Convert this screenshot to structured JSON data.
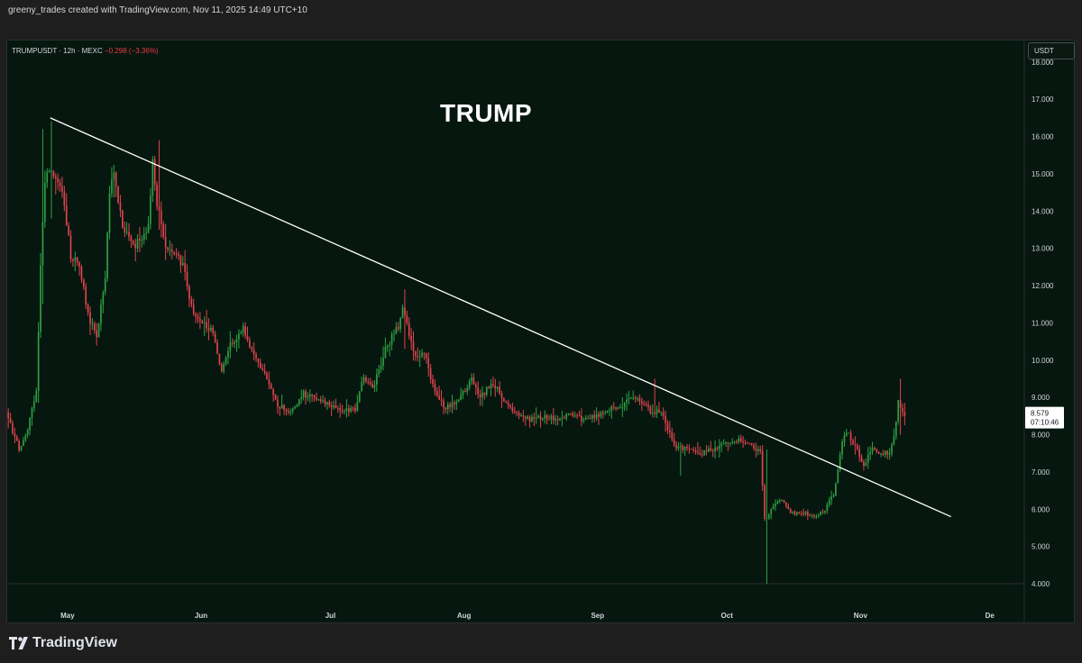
{
  "header": {
    "credit": "greeny_trades created with TradingView.com, Nov 11, 2025 14:49 UTC+10"
  },
  "legend": {
    "symbol": "TRUMPUSDT · 12h · MEXC",
    "change": "−0.298 (−3.36%)"
  },
  "currency": "USDT",
  "footer": {
    "brand": "TradingView"
  },
  "colors": {
    "background": "#06170f",
    "up": "#2ea043",
    "down": "#e0434e",
    "trendline": "#ffffff"
  },
  "chart_data": {
    "type": "candlestick",
    "title": "TRUMP",
    "symbol": "TRUMPUSDT",
    "interval": "12h",
    "exchange": "MEXC",
    "y_ticks": [
      "18.000",
      "17.000",
      "16.000",
      "15.000",
      "14.000",
      "13.000",
      "12.000",
      "11.000",
      "10.000",
      "9.000",
      "8.000",
      "7.000",
      "6.000",
      "5.000",
      "4.000"
    ],
    "ylim": [
      4.0,
      18.6
    ],
    "x_ticks": [
      "May",
      "Jun",
      "Jul",
      "Aug",
      "Sep",
      "Oct",
      "Nov",
      "De"
    ],
    "x_range": [
      "2025-04-17",
      "2025-12-09"
    ],
    "last_price": "8.579",
    "countdown": "07:10:46",
    "trendline": {
      "start": {
        "date": "2025-04-27",
        "price": 16.5
      },
      "end": {
        "date": "2025-11-22",
        "price": 5.8
      }
    },
    "path": [
      [
        "2025-04-17",
        8.6
      ],
      [
        "2025-04-20",
        7.6
      ],
      [
        "2025-04-22",
        8.2
      ],
      [
        "2025-04-24",
        9.1
      ],
      [
        "2025-04-25",
        12.5
      ],
      [
        "2025-04-26",
        14.8
      ],
      [
        "2025-04-27",
        15.2
      ],
      [
        "2025-04-30",
        14.6
      ],
      [
        "2025-05-02",
        12.8
      ],
      [
        "2025-05-04",
        12.6
      ],
      [
        "2025-05-06",
        11.2
      ],
      [
        "2025-05-08",
        10.6
      ],
      [
        "2025-05-10",
        12.2
      ],
      [
        "2025-05-11",
        14.5
      ],
      [
        "2025-05-12",
        15.0
      ],
      [
        "2025-05-14",
        13.6
      ],
      [
        "2025-05-17",
        13.1
      ],
      [
        "2025-05-20",
        13.6
      ],
      [
        "2025-05-21",
        15.3
      ],
      [
        "2025-05-22",
        14.2
      ],
      [
        "2025-05-24",
        13.0
      ],
      [
        "2025-05-28",
        12.6
      ],
      [
        "2025-05-30",
        11.4
      ],
      [
        "2025-06-02",
        11.0
      ],
      [
        "2025-06-04",
        10.7
      ],
      [
        "2025-06-06",
        9.7
      ],
      [
        "2025-06-08",
        10.4
      ],
      [
        "2025-06-11",
        10.9
      ],
      [
        "2025-06-13",
        10.2
      ],
      [
        "2025-06-16",
        9.6
      ],
      [
        "2025-06-19",
        8.8
      ],
      [
        "2025-06-22",
        8.6
      ],
      [
        "2025-06-25",
        9.1
      ],
      [
        "2025-06-28",
        8.9
      ],
      [
        "2025-07-01",
        8.8
      ],
      [
        "2025-07-04",
        8.6
      ],
      [
        "2025-07-07",
        8.7
      ],
      [
        "2025-07-09",
        9.6
      ],
      [
        "2025-07-11",
        9.2
      ],
      [
        "2025-07-14",
        10.3
      ],
      [
        "2025-07-17",
        10.9
      ],
      [
        "2025-07-18",
        11.5
      ],
      [
        "2025-07-19",
        10.9
      ],
      [
        "2025-07-21",
        10.1
      ],
      [
        "2025-07-23",
        10.2
      ],
      [
        "2025-07-25",
        9.3
      ],
      [
        "2025-07-28",
        8.7
      ],
      [
        "2025-07-31",
        8.9
      ],
      [
        "2025-08-03",
        9.5
      ],
      [
        "2025-08-05",
        9.0
      ],
      [
        "2025-08-08",
        9.4
      ],
      [
        "2025-08-11",
        8.8
      ],
      [
        "2025-08-14",
        8.5
      ],
      [
        "2025-08-17",
        8.4
      ],
      [
        "2025-08-20",
        8.5
      ],
      [
        "2025-08-23",
        8.4
      ],
      [
        "2025-08-26",
        8.6
      ],
      [
        "2025-08-29",
        8.4
      ],
      [
        "2025-09-01",
        8.5
      ],
      [
        "2025-09-04",
        8.7
      ],
      [
        "2025-09-07",
        8.8
      ],
      [
        "2025-09-09",
        9.0
      ],
      [
        "2025-09-12",
        8.8
      ],
      [
        "2025-09-14",
        8.6
      ],
      [
        "2025-09-16",
        8.6
      ],
      [
        "2025-09-19",
        7.7
      ],
      [
        "2025-09-22",
        7.6
      ],
      [
        "2025-09-25",
        7.5
      ],
      [
        "2025-09-28",
        7.6
      ],
      [
        "2025-10-01",
        7.8
      ],
      [
        "2025-10-04",
        7.9
      ],
      [
        "2025-10-06",
        7.8
      ],
      [
        "2025-10-09",
        7.5
      ],
      [
        "2025-10-10",
        5.7
      ],
      [
        "2025-10-12",
        6.1
      ],
      [
        "2025-10-14",
        6.3
      ],
      [
        "2025-10-16",
        5.9
      ],
      [
        "2025-10-19",
        5.9
      ],
      [
        "2025-10-22",
        5.8
      ],
      [
        "2025-10-24",
        6.0
      ],
      [
        "2025-10-26",
        6.4
      ],
      [
        "2025-10-27",
        7.0
      ],
      [
        "2025-10-28",
        7.8
      ],
      [
        "2025-10-29",
        8.1
      ],
      [
        "2025-10-31",
        7.7
      ],
      [
        "2025-11-02",
        7.2
      ],
      [
        "2025-11-04",
        7.6
      ],
      [
        "2025-11-06",
        7.5
      ],
      [
        "2025-11-08",
        7.5
      ],
      [
        "2025-11-09",
        7.9
      ],
      [
        "2025-11-10",
        8.9
      ],
      [
        "2025-11-11",
        8.579
      ]
    ],
    "spikes": [
      {
        "date": "2025-04-25",
        "high": 16.2,
        "low": 11.5
      },
      {
        "date": "2025-04-27",
        "high": 16.4,
        "low": 13.8
      },
      {
        "date": "2025-05-22",
        "high": 15.9,
        "low": 13.5
      },
      {
        "date": "2025-07-18",
        "high": 11.9,
        "low": 10.3
      },
      {
        "date": "2025-09-14",
        "high": 9.5,
        "low": 8.5
      },
      {
        "date": "2025-09-20",
        "high": 7.8,
        "low": 6.9
      },
      {
        "date": "2025-10-10",
        "high": 7.6,
        "low": 4.0
      },
      {
        "date": "2025-11-10",
        "high": 9.5,
        "low": 8.0
      }
    ]
  }
}
